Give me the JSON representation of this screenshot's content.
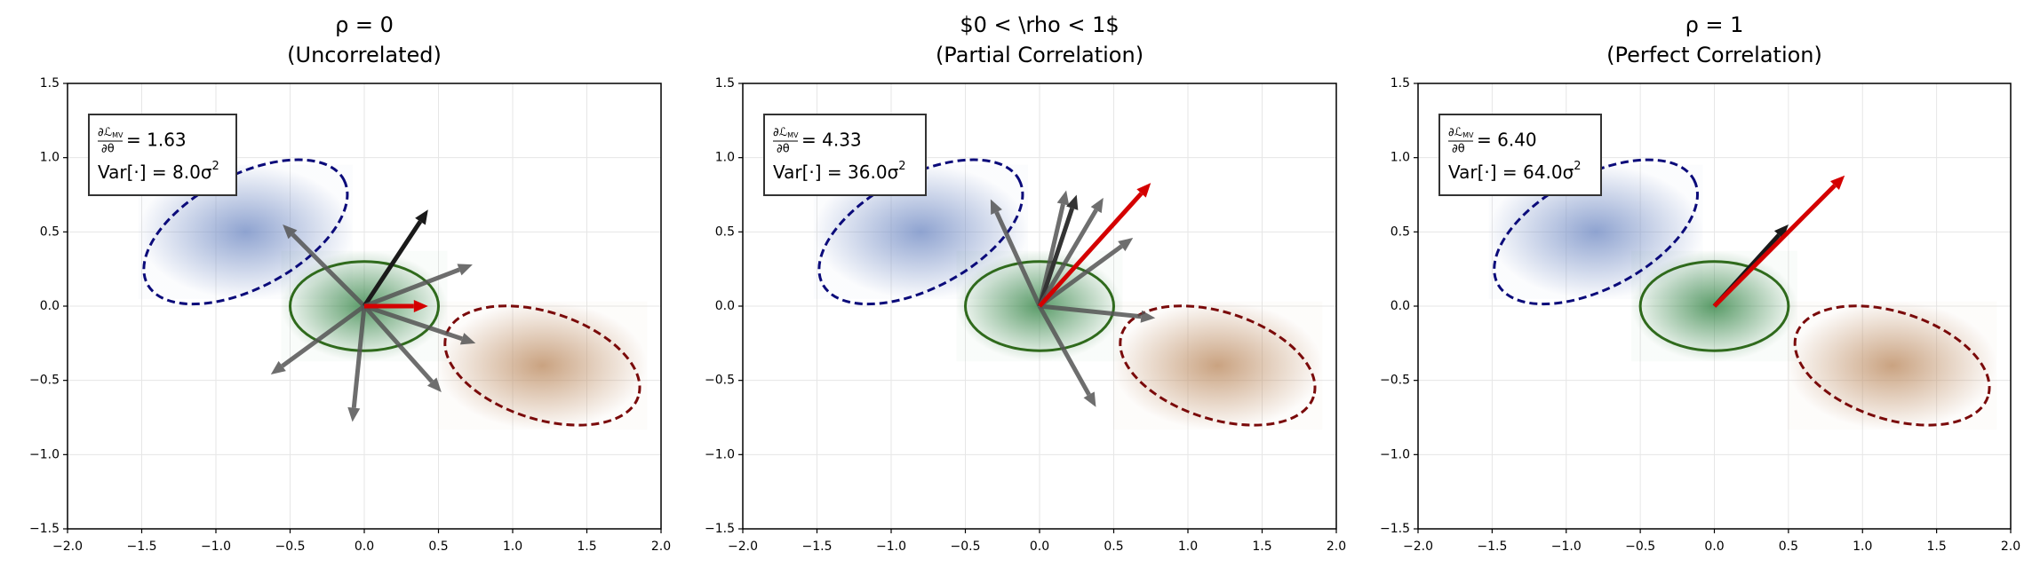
{
  "chart_data": [
    {
      "type": "quiver",
      "title": "ρ = 0",
      "subtitle": "(Uncorrelated)",
      "xlim": [
        -2,
        2
      ],
      "ylim": [
        -1.5,
        1.5
      ],
      "xticks": [
        {
          "value": -2,
          "label": "−2.0"
        },
        {
          "value": -1.5,
          "label": "−1.5"
        },
        {
          "value": -1,
          "label": "−1.0"
        },
        {
          "value": -0.5,
          "label": "−0.5"
        },
        {
          "value": 0,
          "label": "0.0"
        },
        {
          "value": 0.5,
          "label": "0.5"
        },
        {
          "value": 1,
          "label": "1.0"
        },
        {
          "value": 1.5,
          "label": "1.5"
        },
        {
          "value": 2,
          "label": "2.0"
        }
      ],
      "yticks": [
        {
          "value": -1.5,
          "label": "−1.5"
        },
        {
          "value": -1,
          "label": "−1.0"
        },
        {
          "value": -0.5,
          "label": "−0.5"
        },
        {
          "value": 0,
          "label": "0.0"
        },
        {
          "value": 0.5,
          "label": "0.5"
        },
        {
          "value": 1,
          "label": "1.0"
        },
        {
          "value": 1.5,
          "label": "1.5"
        }
      ],
      "grid": true,
      "ellipses": [
        {
          "center": [
            -0.8,
            0.5
          ],
          "rx": 0.75,
          "ry": 0.38,
          "angle": 28,
          "color": "#0b0b7a",
          "fill": "#7b93c8",
          "dashed": true
        },
        {
          "center": [
            0,
            0
          ],
          "rx": 0.5,
          "ry": 0.3,
          "angle": 0,
          "color": "#2f6a1c",
          "fill": "#3d8a4e",
          "dashed": false
        },
        {
          "center": [
            1.2,
            -0.4
          ],
          "rx": 0.68,
          "ry": 0.36,
          "angle": -18,
          "color": "#7a0a0a",
          "fill": "#c0926a",
          "dashed": true
        }
      ],
      "arrows": [
        {
          "x": -0.55,
          "y": 0.55,
          "color": "#555555"
        },
        {
          "x": 0.43,
          "y": 0.65,
          "color": "#1a1a1a"
        },
        {
          "x": 0.73,
          "y": 0.28,
          "color": "#555555"
        },
        {
          "x": 0.75,
          "y": -0.25,
          "color": "#555555"
        },
        {
          "x": 0.52,
          "y": -0.58,
          "color": "#555555"
        },
        {
          "x": -0.63,
          "y": -0.46,
          "color": "#555555"
        },
        {
          "x": -0.08,
          "y": -0.78,
          "color": "#555555"
        },
        {
          "x": 0.43,
          "y": 0.0,
          "color": "#d40000"
        }
      ],
      "annotation": {
        "numerator": "∂ℒ",
        "subscript": "MV",
        "denominator": "∂θ",
        "grad_text": "= 1.63",
        "var_text": "Var[·] = 8.0σ",
        "var_sup": "2"
      }
    },
    {
      "type": "quiver",
      "title": "$0 < \\rho < 1$",
      "subtitle": "(Partial Correlation)",
      "xlim": [
        -2,
        2
      ],
      "ylim": [
        -1.5,
        1.5
      ],
      "xticks": [
        {
          "value": -2,
          "label": "−2.0"
        },
        {
          "value": -1.5,
          "label": "−1.5"
        },
        {
          "value": -1,
          "label": "−1.0"
        },
        {
          "value": -0.5,
          "label": "−0.5"
        },
        {
          "value": 0,
          "label": "0.0"
        },
        {
          "value": 0.5,
          "label": "0.5"
        },
        {
          "value": 1,
          "label": "1.0"
        },
        {
          "value": 1.5,
          "label": "1.5"
        },
        {
          "value": 2,
          "label": "2.0"
        }
      ],
      "yticks": [
        {
          "value": -1.5,
          "label": "−1.5"
        },
        {
          "value": -1,
          "label": "−1.0"
        },
        {
          "value": -0.5,
          "label": "−0.5"
        },
        {
          "value": 0,
          "label": "0.0"
        },
        {
          "value": 0.5,
          "label": "0.5"
        },
        {
          "value": 1,
          "label": "1.0"
        },
        {
          "value": 1.5,
          "label": "1.5"
        }
      ],
      "grid": true,
      "ellipses": [
        {
          "center": [
            -0.8,
            0.5
          ],
          "rx": 0.75,
          "ry": 0.38,
          "angle": 28,
          "color": "#0b0b7a",
          "fill": "#7b93c8",
          "dashed": true
        },
        {
          "center": [
            0,
            0
          ],
          "rx": 0.5,
          "ry": 0.3,
          "angle": 0,
          "color": "#2f6a1c",
          "fill": "#3d8a4e",
          "dashed": false
        },
        {
          "center": [
            1.2,
            -0.4
          ],
          "rx": 0.68,
          "ry": 0.36,
          "angle": -18,
          "color": "#7a0a0a",
          "fill": "#c0926a",
          "dashed": true
        }
      ],
      "arrows": [
        {
          "x": -0.33,
          "y": 0.72,
          "color": "#555555"
        },
        {
          "x": 0.18,
          "y": 0.78,
          "color": "#555555"
        },
        {
          "x": 0.25,
          "y": 0.75,
          "color": "#333333"
        },
        {
          "x": 0.43,
          "y": 0.73,
          "color": "#555555"
        },
        {
          "x": 0.63,
          "y": 0.46,
          "color": "#555555"
        },
        {
          "x": 0.78,
          "y": -0.08,
          "color": "#555555"
        },
        {
          "x": 0.38,
          "y": -0.68,
          "color": "#555555"
        },
        {
          "x": 0.75,
          "y": 0.83,
          "color": "#d40000"
        }
      ],
      "annotation": {
        "numerator": "∂ℒ",
        "subscript": "MV",
        "denominator": "∂θ",
        "grad_text": "= 4.33",
        "var_text": "Var[·] = 36.0σ",
        "var_sup": "2"
      }
    },
    {
      "type": "quiver",
      "title": "ρ = 1",
      "subtitle": "(Perfect Correlation)",
      "xlim": [
        -2,
        2
      ],
      "ylim": [
        -1.5,
        1.5
      ],
      "xticks": [
        {
          "value": -2,
          "label": "−2.0"
        },
        {
          "value": -1.5,
          "label": "−1.5"
        },
        {
          "value": -1,
          "label": "−1.0"
        },
        {
          "value": -0.5,
          "label": "−0.5"
        },
        {
          "value": 0,
          "label": "0.0"
        },
        {
          "value": 0.5,
          "label": "0.5"
        },
        {
          "value": 1,
          "label": "1.0"
        },
        {
          "value": 1.5,
          "label": "1.5"
        },
        {
          "value": 2,
          "label": "2.0"
        }
      ],
      "yticks": [
        {
          "value": -1.5,
          "label": "−1.5"
        },
        {
          "value": -1,
          "label": "−1.0"
        },
        {
          "value": -0.5,
          "label": "−0.5"
        },
        {
          "value": 0,
          "label": "0.0"
        },
        {
          "value": 0.5,
          "label": "0.5"
        },
        {
          "value": 1,
          "label": "1.0"
        },
        {
          "value": 1.5,
          "label": "1.5"
        }
      ],
      "grid": true,
      "ellipses": [
        {
          "center": [
            -0.8,
            0.5
          ],
          "rx": 0.75,
          "ry": 0.38,
          "angle": 28,
          "color": "#0b0b7a",
          "fill": "#7b93c8",
          "dashed": true
        },
        {
          "center": [
            0,
            0
          ],
          "rx": 0.5,
          "ry": 0.3,
          "angle": 0,
          "color": "#2f6a1c",
          "fill": "#3d8a4e",
          "dashed": false
        },
        {
          "center": [
            1.2,
            -0.4
          ],
          "rx": 0.68,
          "ry": 0.36,
          "angle": -18,
          "color": "#7a0a0a",
          "fill": "#c0926a",
          "dashed": true
        }
      ],
      "arrows": [
        {
          "x": 0.5,
          "y": 0.55,
          "color": "#1a1a1a"
        },
        {
          "x": 0.88,
          "y": 0.88,
          "color": "#d40000"
        }
      ],
      "annotation": {
        "numerator": "∂ℒ",
        "subscript": "MV",
        "denominator": "∂θ",
        "grad_text": "= 6.40",
        "var_text": "Var[·] = 64.0σ",
        "var_sup": "2"
      }
    }
  ]
}
